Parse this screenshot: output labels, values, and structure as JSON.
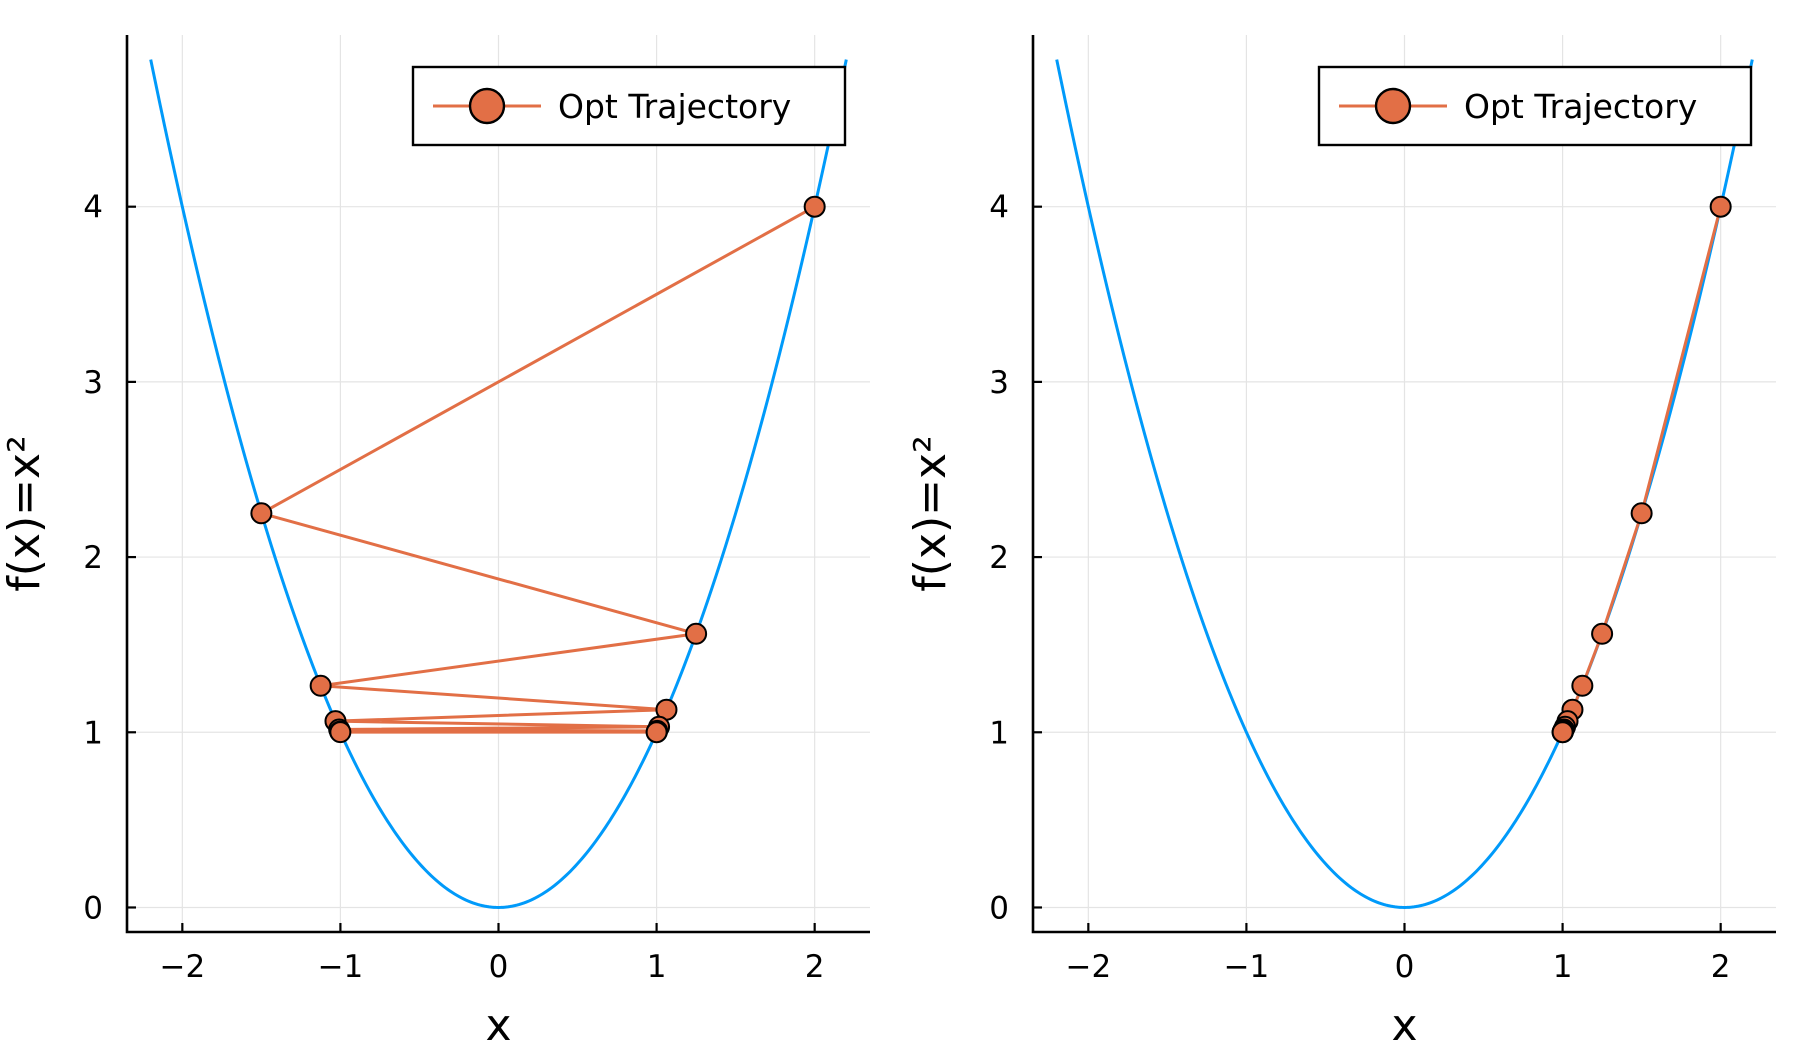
{
  "chart_data": [
    {
      "type": "line",
      "xlabel": "x",
      "ylabel": "f(x)=x²",
      "xlim": [
        -2.35,
        2.35
      ],
      "ylim": [
        -0.14,
        4.98
      ],
      "xticks": [
        -2,
        -1,
        0,
        1,
        2
      ],
      "xtick_labels": [
        "−2",
        "−1",
        "0",
        "1",
        "2"
      ],
      "yticks": [
        0,
        1,
        2,
        3,
        4
      ],
      "ytick_labels": [
        "0",
        "1",
        "2",
        "3",
        "4"
      ],
      "grid": true,
      "legend_position": "top-right",
      "curve": {
        "function": "x^2",
        "x_range": [
          -2.2,
          2.2
        ],
        "color": "#009AFA"
      },
      "series": [
        {
          "name": "Opt Trajectory",
          "color": "#E26F46",
          "x": [
            2.0,
            -1.5,
            1.25,
            -1.125,
            1.0625,
            -1.03125,
            1.015625,
            -1.0078125,
            1.00390625,
            -1.001953125,
            1.0009765625,
            -1.00048828125,
            1.000244140625
          ],
          "y": [
            4.0,
            2.25,
            1.5625,
            1.265625,
            1.12890625,
            1.0634765625,
            1.031494140625,
            1.01568603515625,
            1.0078277587890625,
            1.0039100646972656,
            1.0019540786743164,
            1.000976800918579,
            1.0004883408546448
          ]
        }
      ]
    },
    {
      "type": "line",
      "xlabel": "x",
      "ylabel": "f(x)=x²",
      "xlim": [
        -2.35,
        2.35
      ],
      "ylim": [
        -0.14,
        4.98
      ],
      "xticks": [
        -2,
        -1,
        0,
        1,
        2
      ],
      "xtick_labels": [
        "−2",
        "−1",
        "0",
        "1",
        "2"
      ],
      "yticks": [
        0,
        1,
        2,
        3,
        4
      ],
      "ytick_labels": [
        "0",
        "1",
        "2",
        "3",
        "4"
      ],
      "grid": true,
      "legend_position": "top-right",
      "curve": {
        "function": "x^2",
        "x_range": [
          -2.2,
          2.2
        ],
        "color": "#009AFA"
      },
      "series": [
        {
          "name": "Opt Trajectory",
          "color": "#E26F46",
          "x": [
            2.0,
            1.5,
            1.25,
            1.125,
            1.0625,
            1.03125,
            1.015625,
            1.0078125,
            1.00390625,
            1.001953125,
            1.0009765625,
            1.00048828125,
            1.000244140625
          ],
          "y": [
            4.0,
            2.25,
            1.5625,
            1.265625,
            1.12890625,
            1.0634765625,
            1.031494140625,
            1.01568603515625,
            1.0078277587890625,
            1.0039100646972656,
            1.0019540786743164,
            1.000976800918579,
            1.0004883408546448
          ]
        }
      ]
    }
  ]
}
